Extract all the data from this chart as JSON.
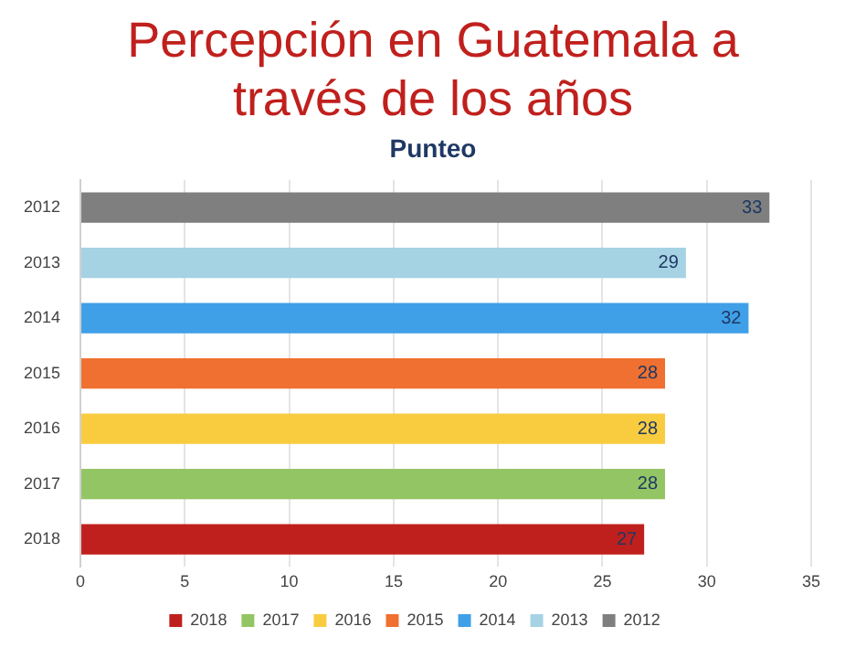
{
  "chart_data": {
    "type": "bar",
    "orientation": "horizontal",
    "title": "Percepción en Guatemala a través de los años",
    "subtitle": "Punteo",
    "categories": [
      "2012",
      "2013",
      "2014",
      "2015",
      "2016",
      "2017",
      "2018"
    ],
    "series": [
      {
        "name": "2018",
        "color": "#c0201d",
        "values": [
          null,
          null,
          null,
          null,
          null,
          null,
          27
        ]
      },
      {
        "name": "2017",
        "color": "#94c564",
        "values": [
          null,
          null,
          null,
          null,
          null,
          28,
          null
        ]
      },
      {
        "name": "2016",
        "color": "#f9cc40",
        "values": [
          null,
          null,
          null,
          null,
          28,
          null,
          null
        ]
      },
      {
        "name": "2015",
        "color": "#ef7030",
        "values": [
          null,
          null,
          null,
          28,
          null,
          null,
          null
        ]
      },
      {
        "name": "2014",
        "color": "#3fa0e8",
        "values": [
          null,
          null,
          32,
          null,
          null,
          null,
          null
        ]
      },
      {
        "name": "2013",
        "color": "#a5d3e4",
        "values": [
          null,
          29,
          null,
          null,
          null,
          null,
          null
        ]
      },
      {
        "name": "2012",
        "color": "#7f7f7f",
        "values": [
          33,
          null,
          null,
          null,
          null,
          null,
          null
        ]
      }
    ],
    "xlim": [
      0,
      35
    ],
    "xticks": [
      0,
      5,
      10,
      15,
      20,
      25,
      30,
      35
    ],
    "grid": "x",
    "legend": "bottom",
    "data_labels": true
  }
}
